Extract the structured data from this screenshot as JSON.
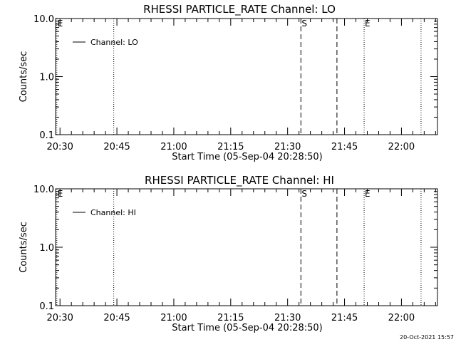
{
  "chart_data": [
    {
      "type": "line",
      "title": "RHESSI PARTICLE_RATE Channel: LO",
      "xlabel": "Start Time (05-Sep-04 20:28:50)",
      "ylabel": "Counts/sec",
      "yscale": "log",
      "ylim": [
        0.1,
        10.0
      ],
      "yticks": [
        "0.1",
        "1.0",
        "10.0"
      ],
      "xlim": [
        "20:28:50",
        "22:09:30"
      ],
      "xticks": [
        "20:30",
        "20:45",
        "21:00",
        "21:15",
        "21:30",
        "21:45",
        "22:00"
      ],
      "legend": {
        "position": "top-left",
        "entries": [
          "Channel: LO"
        ]
      },
      "series": [
        {
          "name": "Channel: LO",
          "values": []
        }
      ],
      "markers": [
        {
          "time": "20:29:10",
          "style": "dotted",
          "label": "E"
        },
        {
          "time": "20:44:10",
          "style": "dotted",
          "label": ""
        },
        {
          "time": "21:33:30",
          "style": "dashed",
          "label": "S"
        },
        {
          "time": "21:43:00",
          "style": "dashed",
          "label": ""
        },
        {
          "time": "21:50:10",
          "style": "dotted",
          "label": "E"
        },
        {
          "time": "22:05:10",
          "style": "dotted",
          "label": ""
        }
      ]
    },
    {
      "type": "line",
      "title": "RHESSI PARTICLE_RATE Channel: HI",
      "xlabel": "Start Time (05-Sep-04 20:28:50)",
      "ylabel": "Counts/sec",
      "yscale": "log",
      "ylim": [
        0.1,
        10.0
      ],
      "yticks": [
        "0.1",
        "1.0",
        "10.0"
      ],
      "xlim": [
        "20:28:50",
        "22:09:30"
      ],
      "xticks": [
        "20:30",
        "20:45",
        "21:00",
        "21:15",
        "21:30",
        "21:45",
        "22:00"
      ],
      "legend": {
        "position": "top-left",
        "entries": [
          "Channel: HI"
        ]
      },
      "series": [
        {
          "name": "Channel: HI",
          "values": []
        }
      ],
      "markers": [
        {
          "time": "20:29:10",
          "style": "dotted",
          "label": "E"
        },
        {
          "time": "20:44:10",
          "style": "dotted",
          "label": ""
        },
        {
          "time": "21:33:30",
          "style": "dashed",
          "label": "S"
        },
        {
          "time": "21:43:00",
          "style": "dashed",
          "label": ""
        },
        {
          "time": "21:50:10",
          "style": "dotted",
          "label": "E"
        },
        {
          "time": "22:05:10",
          "style": "dotted",
          "label": ""
        }
      ]
    }
  ],
  "footer": {
    "timestamp": "20-Oct-2021 15:57"
  },
  "colors": {
    "background": "#ffffff",
    "foreground": "#000000"
  }
}
